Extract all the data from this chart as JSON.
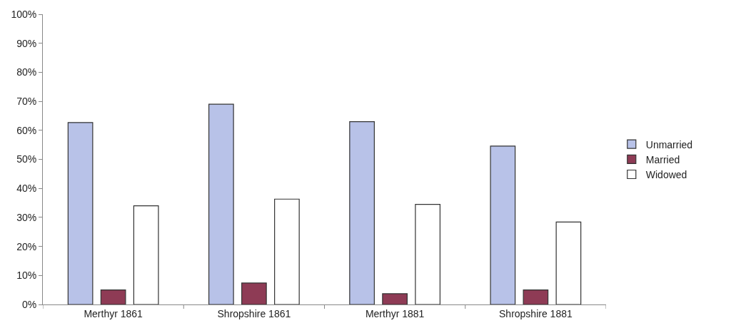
{
  "chart_data": {
    "type": "bar",
    "categories": [
      "Merthyr 1861",
      "Shropshire 1861",
      "Merthyr 1881",
      "Shropshire 1881"
    ],
    "series": [
      {
        "name": "Unmarried",
        "color": "#b8c2e8",
        "values": [
          62.7,
          69,
          63,
          54.6
        ]
      },
      {
        "name": "Married",
        "color": "#8e3b55",
        "values": [
          5,
          7.4,
          3.7,
          5
        ]
      },
      {
        "name": "Widowed",
        "color": "#ffffff",
        "values": [
          34,
          36.3,
          34.5,
          28.4
        ]
      }
    ],
    "ylim": [
      0,
      100
    ],
    "yticks": [
      {
        "value": 0,
        "label": "0%"
      },
      {
        "value": 10,
        "label": "10%"
      },
      {
        "value": 20,
        "label": "20%"
      },
      {
        "value": 30,
        "label": "30%"
      },
      {
        "value": 40,
        "label": "40%"
      },
      {
        "value": 50,
        "label": "50%"
      },
      {
        "value": 60,
        "label": "60%"
      },
      {
        "value": 70,
        "label": "70%"
      },
      {
        "value": 80,
        "label": "80%"
      },
      {
        "value": 90,
        "label": "90%"
      },
      {
        "value": 100,
        "label": "100%"
      }
    ],
    "grid": false,
    "legend": "right"
  }
}
